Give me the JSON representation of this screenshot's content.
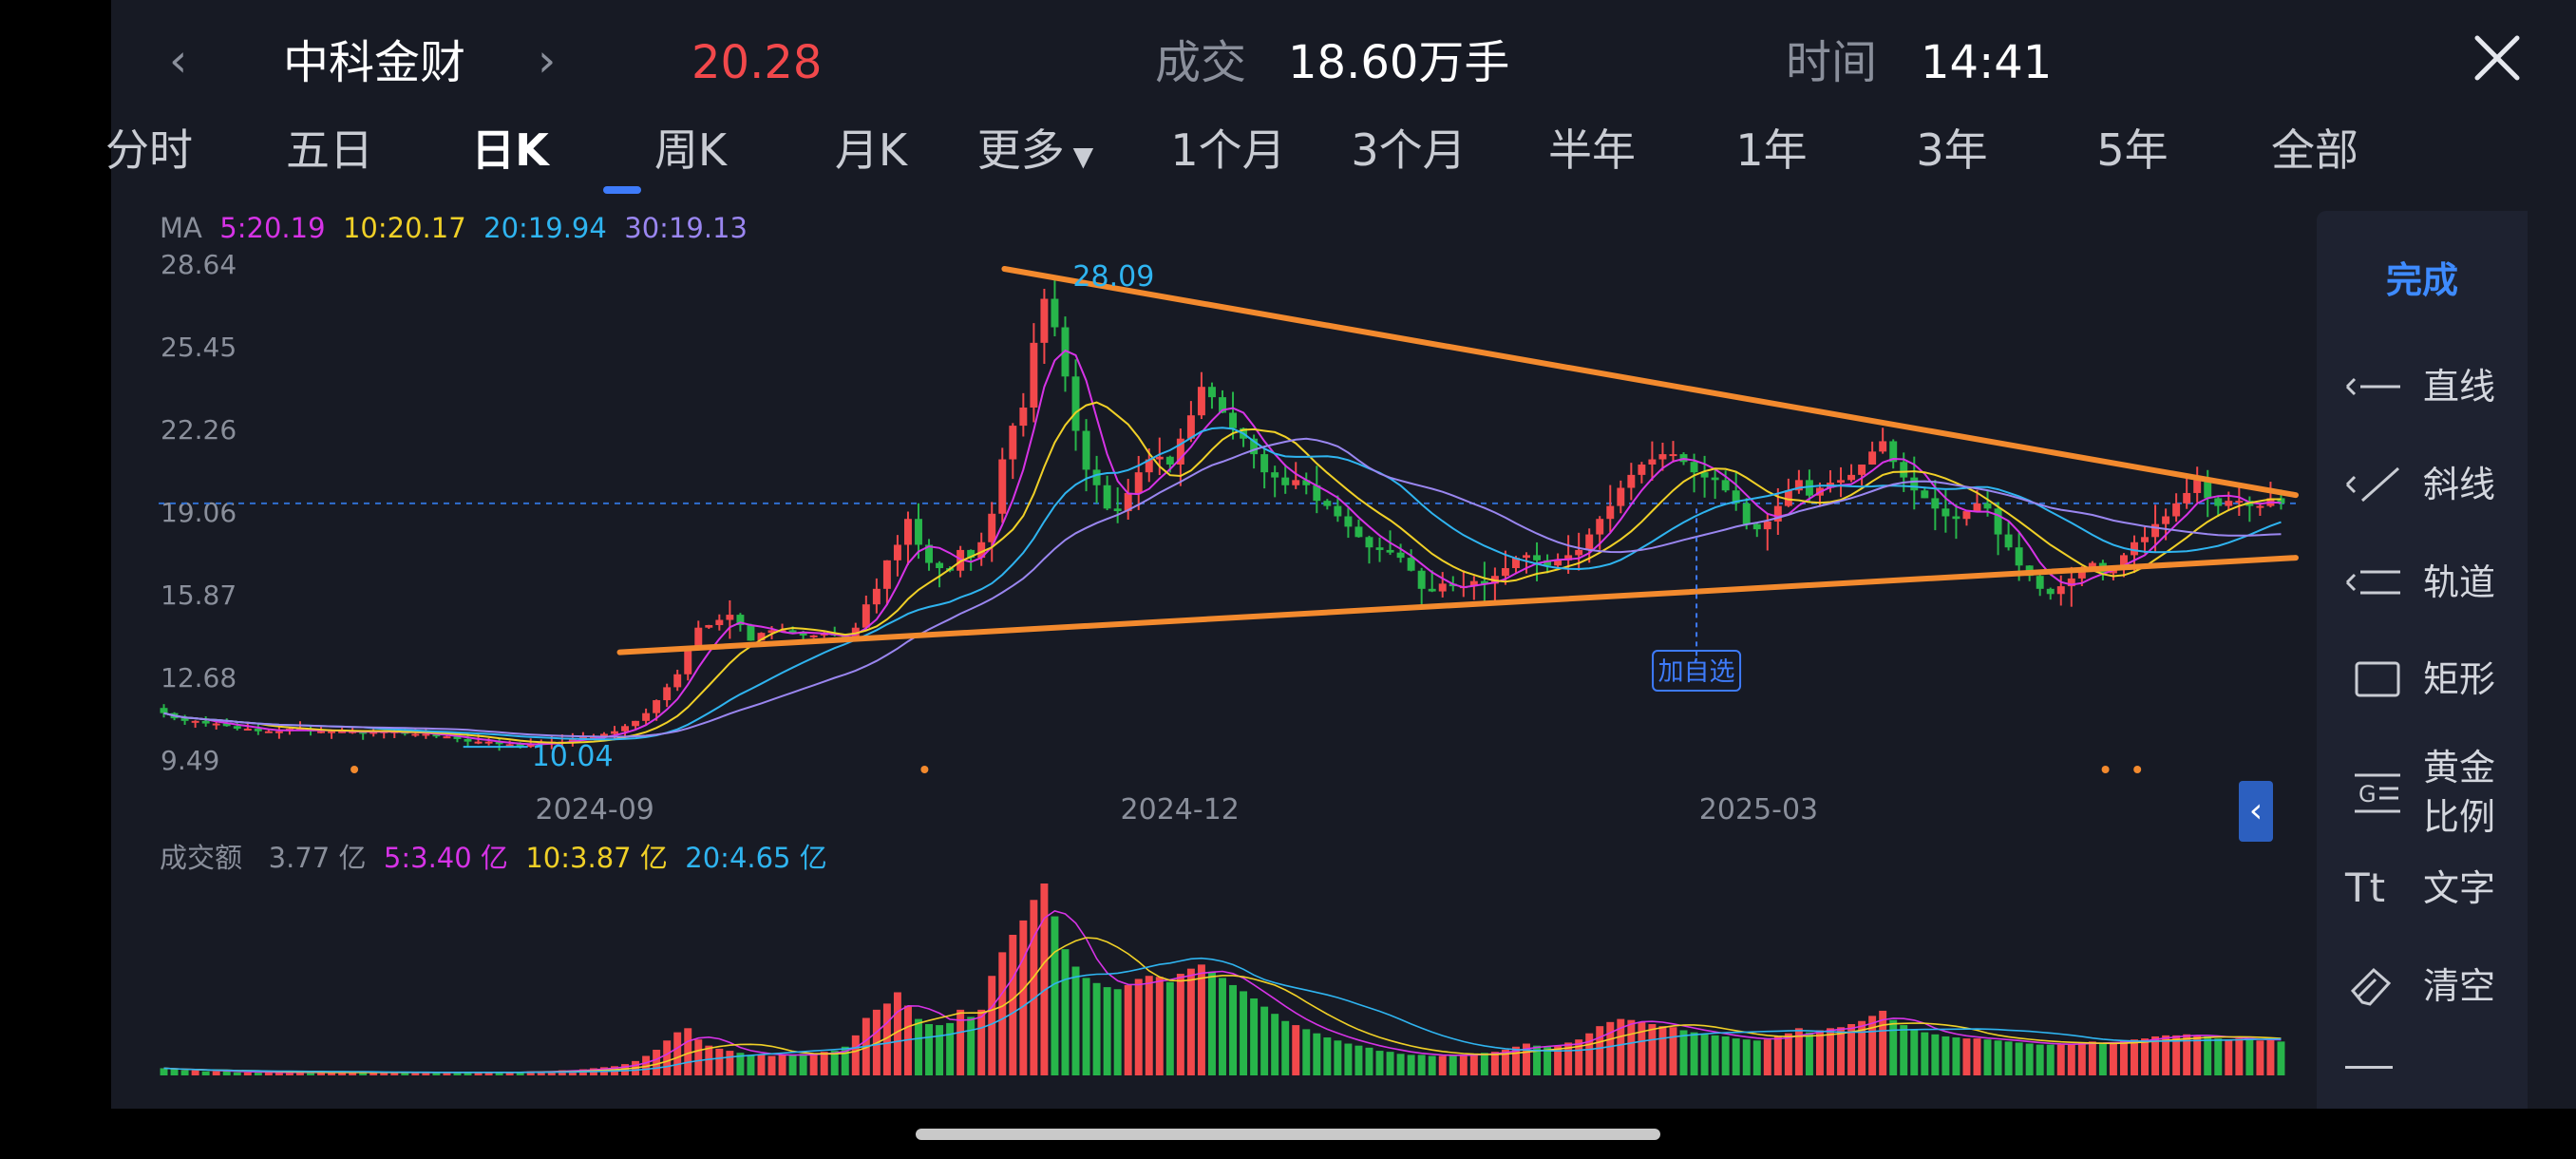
{
  "header": {
    "stock_name": "中科金财",
    "price": "20.28",
    "volume_label": "成交",
    "volume_value": "18.60万手",
    "time_label": "时间",
    "time_value": "14:41"
  },
  "tabs": [
    "分时",
    "五日",
    "日K",
    "周K",
    "月K",
    "更多",
    "1个月",
    "3个月",
    "半年",
    "1年",
    "3年",
    "5年",
    "全部"
  ],
  "active_tab": "日K",
  "ma_legend": {
    "prefix": "MA",
    "ma5": "5:20.19",
    "ma10": "10:20.17",
    "ma20": "20:19.94",
    "ma30": "30:19.13"
  },
  "vol_legend": {
    "prefix": "成交额",
    "value": "3.77 亿",
    "ma5": "5:3.40 亿",
    "ma10": "10:3.87 亿",
    "ma20": "20:4.65 亿"
  },
  "annotations": {
    "high": "28.09",
    "low": "10.04",
    "add_watch": "加自选"
  },
  "tools": {
    "done": "完成",
    "items": [
      {
        "label": "直线",
        "icon": "straight-line-icon"
      },
      {
        "label": "斜线",
        "icon": "diagonal-line-icon"
      },
      {
        "label": "轨道",
        "icon": "channel-icon"
      },
      {
        "label": "矩形",
        "icon": "rectangle-icon"
      },
      {
        "label": "黄金\n比例",
        "icon": "golden-ratio-icon"
      },
      {
        "label": "文字",
        "icon": "text-icon"
      },
      {
        "label": "清空",
        "icon": "eraser-icon"
      }
    ]
  },
  "colors": {
    "up": "#f2484b",
    "down": "#27b54a",
    "ma5": "#d633e6",
    "ma10": "#f0d027",
    "ma20": "#2fb4f0",
    "ma30": "#9a86f0",
    "trend": "#f38a2e",
    "accent": "#3e7bfa",
    "bg": "#171a24"
  },
  "chart_data": {
    "type": "candlestick",
    "y_ticks": [
      28.64,
      25.45,
      22.26,
      19.06,
      15.87,
      12.68,
      9.49
    ],
    "x_ticks": [
      "2024-09",
      "2024-12",
      "2025-03"
    ],
    "current_price_line": 19.4,
    "high_marker": 28.09,
    "low_marker": 10.04,
    "closes": [
      11.3,
      11.1,
      11.0,
      11.0,
      10.9,
      10.9,
      10.8,
      10.7,
      10.7,
      10.6,
      10.6,
      10.6,
      10.7,
      10.7,
      10.6,
      10.6,
      10.6,
      10.6,
      10.6,
      10.5,
      10.6,
      10.6,
      10.6,
      10.5,
      10.5,
      10.5,
      10.4,
      10.4,
      10.3,
      10.2,
      10.2,
      10.2,
      10.1,
      10.1,
      10.0,
      10.1,
      10.2,
      10.2,
      10.2,
      10.3,
      10.4,
      10.4,
      10.5,
      10.6,
      10.8,
      11.0,
      11.3,
      11.8,
      12.3,
      12.8,
      13.8,
      14.6,
      14.7,
      14.9,
      15.1,
      14.7,
      14.1,
      14.4,
      14.5,
      14.5,
      14.4,
      14.3,
      14.3,
      14.4,
      14.3,
      14.1,
      14.6,
      15.5,
      16.1,
      17.2,
      17.8,
      18.8,
      17.8,
      17.1,
      16.9,
      16.8,
      17.6,
      17.3,
      17.9,
      19.0,
      21.1,
      22.4,
      23.1,
      25.6,
      27.3,
      26.2,
      24.3,
      22.2,
      20.7,
      20.1,
      19.2,
      19.1,
      19.8,
      20.6,
      21.1,
      21.2,
      20.9,
      21.9,
      22.8,
      23.9,
      23.5,
      22.9,
      22.3,
      21.9,
      21.3,
      20.6,
      20.4,
      20.1,
      20.3,
      20.1,
      19.5,
      19.3,
      18.9,
      18.5,
      18.1,
      17.7,
      17.6,
      17.5,
      17.3,
      16.8,
      16.1,
      16.0,
      16.3,
      16.2,
      16.2,
      16.4,
      16.3,
      16.6,
      16.9,
      17.3,
      17.4,
      17.2,
      17.0,
      17.2,
      17.4,
      17.6,
      18.2,
      18.8,
      19.3,
      20.0,
      20.5,
      20.9,
      21.1,
      21.3,
      21.3,
      21.0,
      20.6,
      20.4,
      20.3,
      19.9,
      19.4,
      18.6,
      18.4,
      18.7,
      19.3,
      19.9,
      20.3,
      19.7,
      20.0,
      20.2,
      20.3,
      20.5,
      20.9,
      21.4,
      21.8,
      21.0,
      20.4,
      19.9,
      19.6,
      19.2,
      18.9,
      18.8,
      19.1,
      19.4,
      19.2,
      18.2,
      17.7,
      17.0,
      16.6,
      16.1,
      15.9,
      16.2,
      16.5,
      16.9,
      17.1,
      16.7,
      16.9,
      17.4,
      17.9,
      18.1,
      18.6,
      18.9,
      19.4,
      19.8,
      20.3,
      19.6,
      19.3,
      19.5,
      19.5,
      19.3,
      19.3,
      19.6,
      19.4
    ],
    "volume_ticks_note": "volume bars in 亿",
    "volumes": [
      0.7,
      0.6,
      0.5,
      0.5,
      0.4,
      0.4,
      0.4,
      0.3,
      0.3,
      0.3,
      0.3,
      0.3,
      0.3,
      0.3,
      0.3,
      0.3,
      0.3,
      0.3,
      0.3,
      0.3,
      0.3,
      0.3,
      0.3,
      0.3,
      0.3,
      0.3,
      0.3,
      0.3,
      0.3,
      0.3,
      0.3,
      0.3,
      0.3,
      0.3,
      0.3,
      0.4,
      0.4,
      0.4,
      0.5,
      0.5,
      0.6,
      0.7,
      0.8,
      0.9,
      1.1,
      1.4,
      1.9,
      2.5,
      3.4,
      4.2,
      4.6,
      3.5,
      2.9,
      2.6,
      2.4,
      2.2,
      2.0,
      2.0,
      1.9,
      2.0,
      2.0,
      2.1,
      2.1,
      2.3,
      2.4,
      2.8,
      3.9,
      5.6,
      6.4,
      7.0,
      8.1,
      6.8,
      5.5,
      5.0,
      4.9,
      5.1,
      6.4,
      5.7,
      6.4,
      9.7,
      12.0,
      13.7,
      15.1,
      17.1,
      18.7,
      15.5,
      12.3,
      10.6,
      9.5,
      9.0,
      8.6,
      8.4,
      8.8,
      9.4,
      9.7,
      9.6,
      9.1,
      9.9,
      10.4,
      10.8,
      10.1,
      9.5,
      8.8,
      8.2,
      7.5,
      6.7,
      6.0,
      5.3,
      4.9,
      4.5,
      4.1,
      3.7,
      3.4,
      3.1,
      2.9,
      2.7,
      2.4,
      2.3,
      2.1,
      2.0,
      2.0,
      1.9,
      1.9,
      2.0,
      2.0,
      2.1,
      2.2,
      2.3,
      2.5,
      2.8,
      3.1,
      2.9,
      2.8,
      2.9,
      3.2,
      3.5,
      4.1,
      4.8,
      5.2,
      5.5,
      5.4,
      5.2,
      5.0,
      4.8,
      4.7,
      4.4,
      4.2,
      4.0,
      3.9,
      3.8,
      3.6,
      3.5,
      3.4,
      3.5,
      3.8,
      4.1,
      4.6,
      4.2,
      4.4,
      4.6,
      4.7,
      5.0,
      5.3,
      5.8,
      6.3,
      5.4,
      4.9,
      4.5,
      4.2,
      4.0,
      3.8,
      3.7,
      3.6,
      3.6,
      3.5,
      3.4,
      3.3,
      3.2,
      3.1,
      3.0,
      3.0,
      3.0,
      3.1,
      3.2,
      3.3,
      3.1,
      3.2,
      3.4,
      3.5,
      3.6,
      3.8,
      3.9,
      3.9,
      4.0,
      3.9,
      3.8,
      3.6,
      3.5,
      3.6,
      3.5,
      3.4,
      3.5,
      3.3
    ]
  }
}
